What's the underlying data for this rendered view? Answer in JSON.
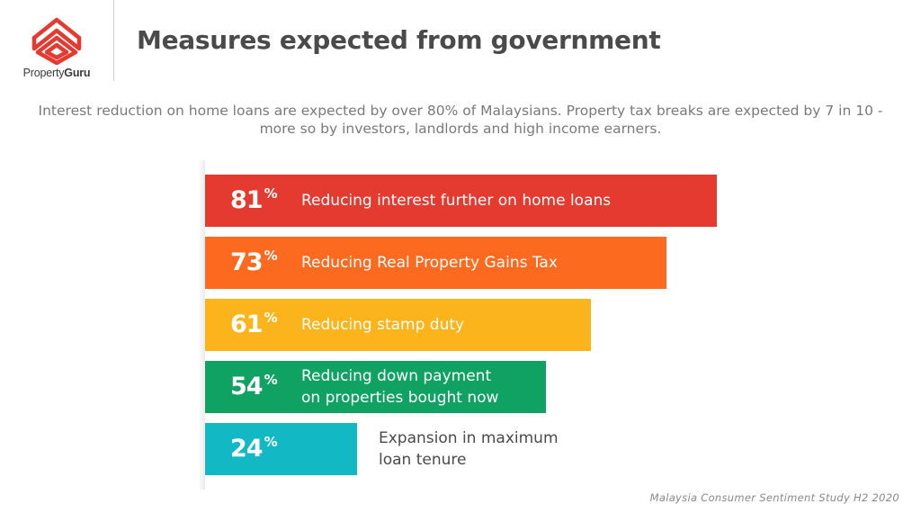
{
  "brand": {
    "logo_text_regular": "Property",
    "logo_text_bold": "Guru",
    "logo_color": "#e6392f",
    "logo_icon": "house-roof-logo-icon"
  },
  "title": "Measures expected from government",
  "subtitle": "Interest reduction on home loans are expected by over 80% of Malaysians. Property tax breaks are expected by 7 in 10 - more so by investors, landlords and high income earners.",
  "source": "Malaysia Consumer Sentiment Study H2 2020",
  "chart_data": {
    "type": "bar",
    "orientation": "horizontal",
    "unit": "%",
    "categories": [
      "Reducing interest further on home loans",
      "Reducing Real Property Gains Tax",
      "Reducing stamp duty",
      "Reducing down payment on properties bought now",
      "Expansion in maximum loan tenure"
    ],
    "values": [
      81,
      73,
      61,
      54,
      24
    ],
    "value_labels": [
      "81",
      "73",
      "61",
      "54",
      "24"
    ],
    "label_lines": [
      [
        "Reducing interest further on home loans"
      ],
      [
        "Reducing Real Property Gains Tax"
      ],
      [
        "Reducing stamp duty"
      ],
      [
        "Reducing down payment",
        "on properties bought now"
      ],
      [
        "Expansion in maximum",
        "loan tenure"
      ]
    ],
    "colors": [
      "#e53a2f",
      "#fb6a1e",
      "#fbb41b",
      "#0fa262",
      "#12b8c4"
    ],
    "xlim": [
      0,
      81
    ],
    "grid": false,
    "legend": "none"
  }
}
